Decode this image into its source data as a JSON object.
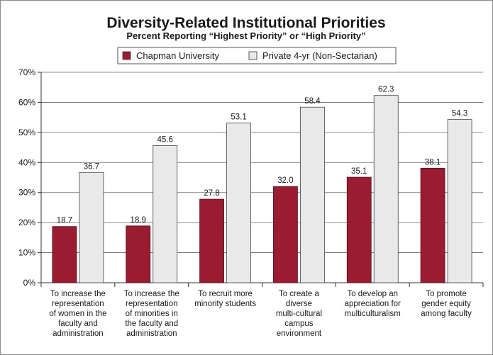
{
  "chart_data": {
    "type": "bar",
    "title": "Diversity-Related Institutional Priorities",
    "subtitle": "Percent Reporting “Highest Priority” or “High Priority”",
    "xlabel": "",
    "ylabel": "",
    "ylim": [
      0,
      70
    ],
    "yticks": [
      0,
      10,
      20,
      30,
      40,
      50,
      60,
      70
    ],
    "ytick_suffix": "%",
    "grid": true,
    "legend_position": "top-center",
    "categories": [
      [
        "To increase the",
        "representation",
        "of women in the",
        "faculty and",
        "administration"
      ],
      [
        "To increase the",
        "representation",
        "of minorities in",
        "the faculty and",
        "administration"
      ],
      [
        "To recruit more",
        "minority students"
      ],
      [
        "To create a",
        "diverse",
        "multi-cultural",
        "campus",
        "environment"
      ],
      [
        "To develop an",
        "appreciation for",
        "multiculturalism"
      ],
      [
        "To promote",
        "gender equity",
        "among faculty"
      ]
    ],
    "series": [
      {
        "name": "Chapman University",
        "color": "#9b1b30",
        "values": [
          18.7,
          18.9,
          27.8,
          32.0,
          35.1,
          38.1
        ],
        "labels": [
          "18.7",
          "18.9",
          "27.8",
          "32.0",
          "35.1",
          "38.1"
        ]
      },
      {
        "name": "Private 4-yr (Non-Sectarian)",
        "color": "#e9e9e9",
        "values": [
          36.7,
          45.6,
          53.1,
          58.4,
          62.3,
          54.3
        ],
        "labels": [
          "36.7",
          "45.6",
          "53.1",
          "58.4",
          "62.3",
          "54.3"
        ]
      }
    ]
  }
}
